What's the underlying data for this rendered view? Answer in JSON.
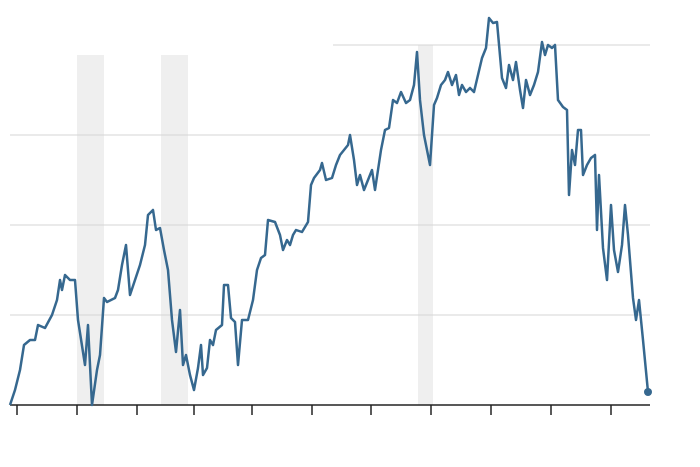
{
  "chart_data": {
    "type": "line",
    "x": [
      -7,
      -2,
      3,
      7,
      13,
      18,
      21,
      28,
      35,
      40,
      43,
      45,
      48,
      53,
      58,
      61,
      68,
      71,
      75,
      80,
      83,
      87,
      90,
      98,
      101,
      105,
      109,
      113,
      118,
      123,
      128,
      131,
      136,
      139,
      143,
      147,
      151,
      155,
      159,
      163,
      166,
      169,
      173,
      177,
      181,
      184,
      186,
      190,
      193,
      196,
      199,
      205,
      207,
      211,
      214,
      218,
      221,
      225,
      231,
      236,
      240,
      244,
      248,
      251,
      258,
      263,
      266,
      270,
      273,
      276,
      279,
      285,
      291,
      294,
      297,
      303,
      305,
      309,
      315,
      319,
      323,
      327,
      331,
      333,
      337,
      340,
      343,
      347,
      351,
      355,
      358,
      361,
      364,
      368,
      372,
      376,
      380,
      384,
      389,
      393,
      397,
      400,
      403,
      407,
      413,
      417,
      420,
      424,
      428,
      431,
      435,
      439,
      442,
      445,
      449,
      453,
      457,
      461,
      465,
      469,
      472,
      476,
      480,
      485,
      489,
      492,
      496,
      499,
      503,
      506,
      509,
      513,
      517,
      521,
      525,
      528,
      531,
      535,
      538,
      541,
      546,
      550,
      552,
      555,
      558,
      561,
      564,
      566,
      570,
      574,
      578,
      580,
      582,
      586,
      590,
      594,
      597,
      601,
      605,
      608,
      611,
      616,
      619,
      622,
      626,
      631
    ],
    "series": [
      {
        "color": "#36688f",
        "values": [
          0,
          15,
          35,
          60,
          65,
          65,
          80,
          77,
          90,
          105,
          125,
          115,
          130,
          125,
          125,
          85,
          40,
          80,
          0,
          35,
          50,
          107,
          103,
          107,
          115,
          140,
          160,
          110,
          125,
          140,
          160,
          190,
          195,
          175,
          177,
          155,
          135,
          85,
          53,
          95,
          40,
          50,
          30,
          15,
          37,
          60,
          30,
          37,
          65,
          60,
          75,
          80,
          120,
          120,
          87,
          83,
          40,
          85,
          85,
          105,
          135,
          147,
          150,
          185,
          183,
          170,
          155,
          165,
          160,
          170,
          175,
          173,
          183,
          220,
          227,
          235,
          242,
          225,
          227,
          240,
          250,
          255,
          260,
          270,
          245,
          220,
          230,
          215,
          225,
          235,
          215,
          235,
          255,
          275,
          277,
          305,
          302,
          313,
          302,
          305,
          320,
          353,
          305,
          270,
          240,
          300,
          307,
          320,
          325,
          333,
          320,
          330,
          310,
          320,
          313,
          317,
          313,
          330,
          347,
          357,
          387,
          382,
          383,
          327,
          317,
          340,
          325,
          343,
          315,
          297,
          325,
          310,
          320,
          333,
          363,
          350,
          360,
          357,
          360,
          305,
          298,
          295,
          210,
          255,
          240,
          275,
          275,
          230,
          240,
          247,
          250,
          175,
          230,
          157,
          125,
          200,
          155,
          133,
          160,
          200,
          170,
          107,
          85,
          105,
          65,
          13
        ]
      }
    ],
    "xlim": [
      -7,
      633
    ],
    "xticks": [
      0,
      60,
      120,
      177,
      235,
      295,
      354,
      414,
      474,
      534,
      594
    ],
    "ylim": [
      0,
      400
    ],
    "yticks": [
      0,
      90,
      180,
      270,
      360
    ],
    "grid": true,
    "shading": [
      {
        "x0": 60,
        "x1": 87,
        "top": 350
      },
      {
        "x0": 144,
        "x1": 171,
        "top": 350
      },
      {
        "x0": 401,
        "x1": 416,
        "top": 360
      }
    ],
    "end_marker": true
  }
}
